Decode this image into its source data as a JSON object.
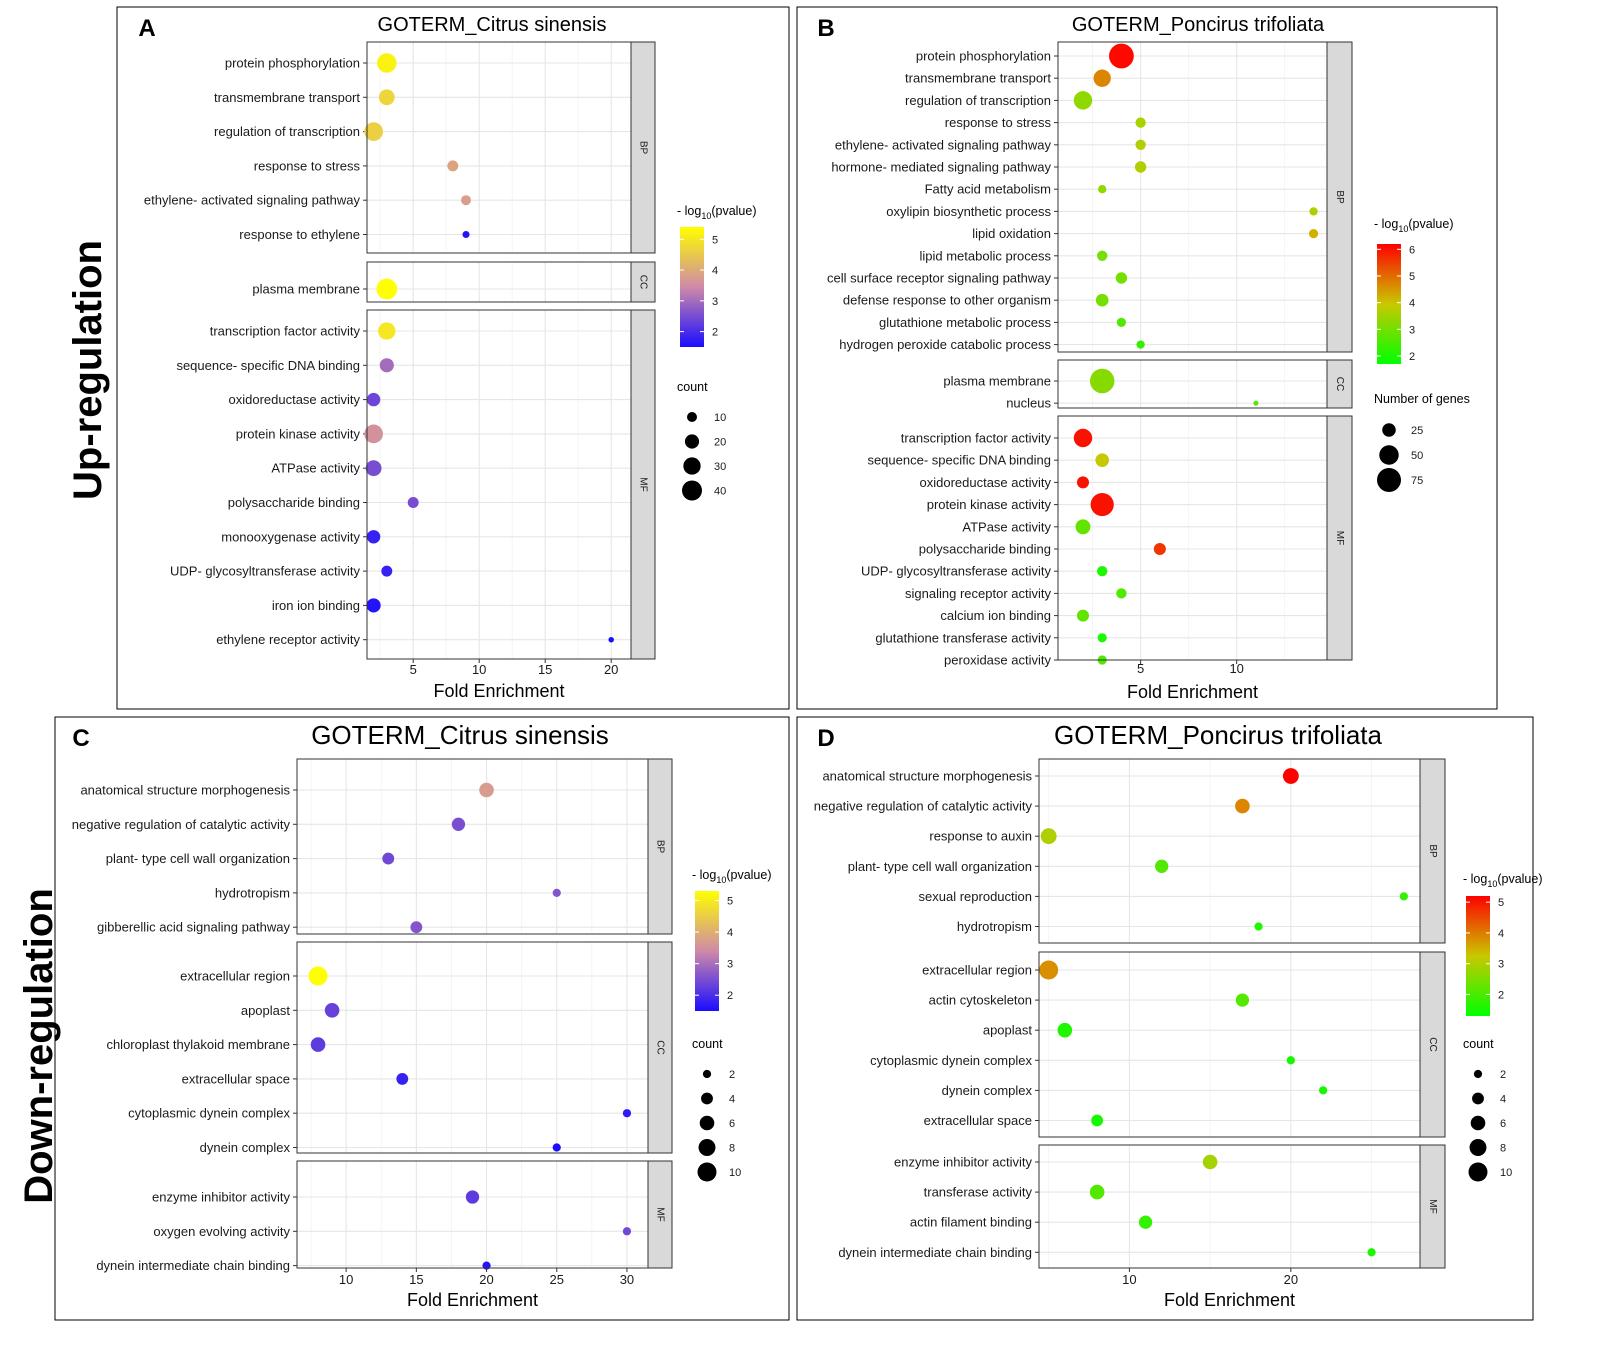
{
  "row_labels": {
    "up": "Up-regulation",
    "down": "Down-regulation"
  },
  "chart_data": [
    {
      "panel": "A",
      "type": "scatter",
      "title": "GOTERM_Citrus sinensis",
      "xlabel": "Fold Enrichment",
      "x_ticks": [
        5,
        10,
        15,
        20
      ],
      "color_legend": {
        "title_prefix": "- log",
        "title_sub": "10",
        "title_suffix": "(pvalue)",
        "ticks": [
          2,
          3,
          4,
          5
        ],
        "range": [
          1.5,
          5.4
        ],
        "gradient": [
          "#0d00ff",
          "#ffff00"
        ]
      },
      "size_legend": {
        "title": "count",
        "values": [
          10,
          20,
          30,
          40
        ]
      },
      "facets": [
        {
          "name": "BP",
          "terms": [
            {
              "term": "protein phosphorylation",
              "fold": 3,
              "count": 38,
              "logp": 5.2
            },
            {
              "term": "transmembrane transport",
              "fold": 3,
              "count": 25,
              "logp": 4.7
            },
            {
              "term": "regulation of transcription",
              "fold": 2,
              "count": 35,
              "logp": 4.6
            },
            {
              "term": "response to stress",
              "fold": 8,
              "count": 12,
              "logp": 3.9
            },
            {
              "term": "ethylene- activated signaling pathway",
              "fold": 9,
              "count": 10,
              "logp": 3.8
            },
            {
              "term": "response to ethylene",
              "fold": 9,
              "count": 5,
              "logp": 1.6
            }
          ]
        },
        {
          "name": "CC",
          "terms": [
            {
              "term": "plasma membrane",
              "fold": 3,
              "count": 43,
              "logp": 5.4
            }
          ]
        },
        {
          "name": "MF",
          "terms": [
            {
              "term": "transcription factor activity",
              "fold": 3,
              "count": 30,
              "logp": 5.0
            },
            {
              "term": "sequence- specific DNA binding",
              "fold": 3,
              "count": 20,
              "logp": 3.0
            },
            {
              "term": "oxidoreductase activity",
              "fold": 2,
              "count": 18,
              "logp": 2.4
            },
            {
              "term": "protein kinase activity",
              "fold": 2,
              "count": 35,
              "logp": 3.6
            },
            {
              "term": "ATPase activity",
              "fold": 2,
              "count": 25,
              "logp": 2.5
            },
            {
              "term": "polysaccharide binding",
              "fold": 5,
              "count": 12,
              "logp": 2.5
            },
            {
              "term": "monooxygenase activity",
              "fold": 2,
              "count": 18,
              "logp": 1.8
            },
            {
              "term": "UDP- glycosyltransferase activity",
              "fold": 3,
              "count": 12,
              "logp": 1.8
            },
            {
              "term": "iron ion binding",
              "fold": 2,
              "count": 20,
              "logp": 1.6
            },
            {
              "term": "ethylene receptor activity",
              "fold": 20,
              "count": 3,
              "logp": 1.5
            }
          ]
        }
      ]
    },
    {
      "panel": "B",
      "type": "scatter",
      "title": "GOTERM_Poncirus trifoliata",
      "xlabel": "Fold Enrichment",
      "x_ticks": [
        5,
        10
      ],
      "color_legend": {
        "title_prefix": "- log",
        "title_sub": "10",
        "title_suffix": "(pvalue)",
        "ticks": [
          2,
          3,
          4,
          5,
          6
        ],
        "range": [
          1.7,
          6.2
        ],
        "gradient": [
          "#00ff00",
          "#ff0000"
        ]
      },
      "size_legend": {
        "title": "Number of genes",
        "values": [
          25,
          50,
          75
        ]
      },
      "facets": [
        {
          "name": "BP",
          "terms": [
            {
              "term": "protein phosphorylation",
              "fold": 4,
              "count": 80,
              "logp": 6.1
            },
            {
              "term": "transmembrane transport",
              "fold": 3,
              "count": 40,
              "logp": 4.7
            },
            {
              "term": "regulation of transcription",
              "fold": 2,
              "count": 45,
              "logp": 3.3
            },
            {
              "term": "response to stress",
              "fold": 5,
              "count": 15,
              "logp": 3.6
            },
            {
              "term": "ethylene- activated signaling pathway",
              "fold": 5,
              "count": 15,
              "logp": 3.7
            },
            {
              "term": "hormone- mediated signaling pathway",
              "fold": 5,
              "count": 18,
              "logp": 3.7
            },
            {
              "term": "Fatty acid metabolism",
              "fold": 3,
              "count": 10,
              "logp": 3.3
            },
            {
              "term": "oxylipin biosynthetic process",
              "fold": 14,
              "count": 10,
              "logp": 3.6
            },
            {
              "term": "lipid oxidation",
              "fold": 14,
              "count": 12,
              "logp": 4.2
            },
            {
              "term": "lipid metabolic process",
              "fold": 3,
              "count": 15,
              "logp": 3.0
            },
            {
              "term": "cell surface receptor signaling pathway",
              "fold": 4,
              "count": 18,
              "logp": 3.0
            },
            {
              "term": "defense response to other organism",
              "fold": 3,
              "count": 22,
              "logp": 3.0
            },
            {
              "term": "glutathione metabolic process",
              "fold": 4,
              "count": 12,
              "logp": 2.6
            },
            {
              "term": "hydrogen peroxide catabolic process",
              "fold": 5,
              "count": 10,
              "logp": 2.3
            }
          ]
        },
        {
          "name": "CC",
          "terms": [
            {
              "term": "plasma membrane",
              "fold": 3,
              "count": 78,
              "logp": 3.2
            },
            {
              "term": "nucleus",
              "fold": 11,
              "count": 3,
              "logp": 2.6
            }
          ]
        },
        {
          "name": "MF",
          "terms": [
            {
              "term": "transcription factor activity",
              "fold": 2,
              "count": 45,
              "logp": 6.0
            },
            {
              "term": "sequence- specific DNA binding",
              "fold": 3,
              "count": 25,
              "logp": 3.9
            },
            {
              "term": "oxidoreductase activity",
              "fold": 2,
              "count": 20,
              "logp": 6.0
            },
            {
              "term": "protein kinase activity",
              "fold": 3,
              "count": 70,
              "logp": 6.0
            },
            {
              "term": "ATPase activity",
              "fold": 2,
              "count": 30,
              "logp": 2.8
            },
            {
              "term": "polysaccharide binding",
              "fold": 6,
              "count": 20,
              "logp": 5.6
            },
            {
              "term": "UDP- glycosyltransferase activity",
              "fold": 3,
              "count": 15,
              "logp": 2.0
            },
            {
              "term": "signaling receptor activity",
              "fold": 4,
              "count": 15,
              "logp": 2.6
            },
            {
              "term": "calcium ion binding",
              "fold": 2,
              "count": 20,
              "logp": 2.8
            },
            {
              "term": "glutathione transferase activity",
              "fold": 3,
              "count": 12,
              "logp": 2.0
            },
            {
              "term": "peroxidase activity",
              "fold": 3,
              "count": 12,
              "logp": 2.6
            }
          ]
        }
      ]
    },
    {
      "panel": "C",
      "type": "scatter",
      "title": "GOTERM_Citrus sinensis",
      "xlabel": "Fold Enrichment",
      "x_ticks": [
        10,
        15,
        20,
        25,
        30
      ],
      "color_legend": {
        "title_prefix": "- log",
        "title_sub": "10",
        "title_suffix": "(pvalue)",
        "ticks": [
          2,
          3,
          4,
          5
        ],
        "range": [
          1.5,
          5.3
        ],
        "gradient": [
          "#0d00ff",
          "#ffff00"
        ]
      },
      "size_legend": {
        "title": "count",
        "values": [
          2,
          4,
          6,
          8,
          10
        ]
      },
      "facets": [
        {
          "name": "BP",
          "terms": [
            {
              "term": "anatomical structure morphogenesis",
              "fold": 20,
              "count": 6,
              "logp": 3.7
            },
            {
              "term": "negative regulation of catalytic activity",
              "fold": 18,
              "count": 5,
              "logp": 2.5
            },
            {
              "term": "plant- type cell wall organization",
              "fold": 13,
              "count": 4,
              "logp": 2.4
            },
            {
              "term": "hydrotropism",
              "fold": 25,
              "count": 2,
              "logp": 2.6
            },
            {
              "term": "gibberellic acid signaling pathway",
              "fold": 15,
              "count": 4,
              "logp": 2.6
            }
          ]
        },
        {
          "name": "CC",
          "terms": [
            {
              "term": "extracellular region",
              "fold": 8,
              "count": 10,
              "logp": 5.3
            },
            {
              "term": "apoplast",
              "fold": 9,
              "count": 6,
              "logp": 2.3
            },
            {
              "term": "chloroplast thylakoid membrane",
              "fold": 8,
              "count": 6,
              "logp": 2.2
            },
            {
              "term": "extracellular space",
              "fold": 14,
              "count": 4,
              "logp": 1.8
            },
            {
              "term": "cytoplasmic dynein complex",
              "fold": 30,
              "count": 2,
              "logp": 1.7
            },
            {
              "term": "dynein complex",
              "fold": 25,
              "count": 2,
              "logp": 1.5
            }
          ]
        },
        {
          "name": "MF",
          "terms": [
            {
              "term": "enzyme inhibitor activity",
              "fold": 19,
              "count": 5,
              "logp": 2.2
            },
            {
              "term": "oxygen evolving activity",
              "fold": 30,
              "count": 2,
              "logp": 2.4
            },
            {
              "term": "dynein intermediate chain binding",
              "fold": 20,
              "count": 2,
              "logp": 1.6
            }
          ]
        }
      ]
    },
    {
      "panel": "D",
      "type": "scatter",
      "title": "GOTERM_Poncirus trifoliata",
      "xlabel": "Fold Enrichment",
      "x_ticks": [
        10,
        20
      ],
      "color_legend": {
        "title_prefix": "- log",
        "title_sub": "10",
        "title_suffix": "(pvalue)",
        "ticks": [
          2,
          3,
          4,
          5
        ],
        "range": [
          1.3,
          5.2
        ],
        "gradient": [
          "#00ff00",
          "#ff0000"
        ]
      },
      "size_legend": {
        "title": "count",
        "values": [
          2,
          4,
          6,
          8,
          10
        ]
      },
      "facets": [
        {
          "name": "BP",
          "terms": [
            {
              "term": "anatomical structure morphogenesis",
              "fold": 20,
              "count": 7,
              "logp": 5.2
            },
            {
              "term": "negative regulation of catalytic activity",
              "fold": 17,
              "count": 6,
              "logp": 3.9
            },
            {
              "term": "response to auxin",
              "fold": 5,
              "count": 7,
              "logp": 3.0
            },
            {
              "term": "plant- type cell wall organization",
              "fold": 12,
              "count": 5,
              "logp": 2.1
            },
            {
              "term": "sexual reproduction",
              "fold": 27,
              "count": 2,
              "logp": 1.8
            },
            {
              "term": "hydrotropism",
              "fold": 18,
              "count": 2,
              "logp": 1.6
            }
          ]
        },
        {
          "name": "CC",
          "terms": [
            {
              "term": "extracellular region",
              "fold": 5,
              "count": 10,
              "logp": 3.8
            },
            {
              "term": "actin cytoskeleton",
              "fold": 17,
              "count": 5,
              "logp": 2.1
            },
            {
              "term": "apoplast",
              "fold": 6,
              "count": 6,
              "logp": 1.6
            },
            {
              "term": "cytoplasmic dynein complex",
              "fold": 20,
              "count": 2,
              "logp": 1.5
            },
            {
              "term": "dynein complex",
              "fold": 22,
              "count": 2,
              "logp": 1.5
            },
            {
              "term": "extracellular space",
              "fold": 8,
              "count": 4,
              "logp": 1.5
            }
          ]
        },
        {
          "name": "MF",
          "terms": [
            {
              "term": "enzyme inhibitor activity",
              "fold": 15,
              "count": 6,
              "logp": 2.9
            },
            {
              "term": "transferase activity",
              "fold": 8,
              "count": 6,
              "logp": 2.1
            },
            {
              "term": "actin filament binding",
              "fold": 11,
              "count": 5,
              "logp": 1.8
            },
            {
              "term": "dynein intermediate chain binding",
              "fold": 25,
              "count": 2,
              "logp": 1.6
            }
          ]
        }
      ]
    }
  ]
}
